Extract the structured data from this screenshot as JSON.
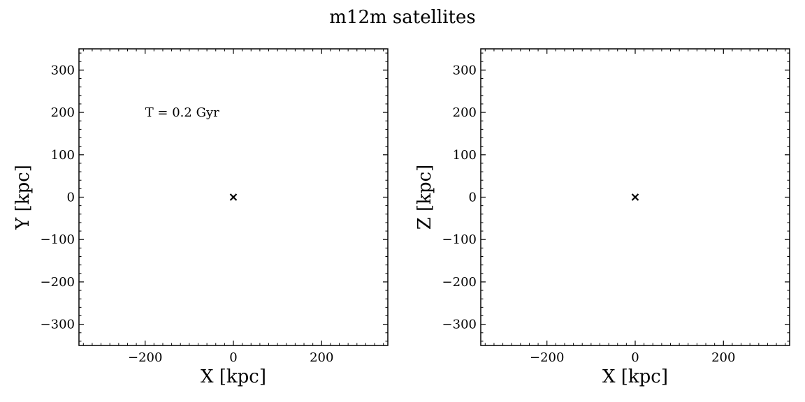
{
  "figure": {
    "title": "m12m satellites"
  },
  "chart_data": [
    {
      "type": "scatter",
      "xlabel": "X [kpc]",
      "ylabel": "Y [kpc]",
      "xlim": [
        -350,
        350
      ],
      "ylim": [
        -350,
        350
      ],
      "xticks": [
        -200,
        0,
        200
      ],
      "yticks": [
        -300,
        -200,
        -100,
        0,
        100,
        200,
        300
      ],
      "annotation": "T = 0.2 Gyr",
      "grid": false,
      "points": [
        {
          "x": 0,
          "y": 0,
          "marker": "x",
          "color": "#000000"
        }
      ]
    },
    {
      "type": "scatter",
      "xlabel": "X [kpc]",
      "ylabel": "Z [kpc]",
      "xlim": [
        -350,
        350
      ],
      "ylim": [
        -350,
        350
      ],
      "xticks": [
        -200,
        0,
        200
      ],
      "yticks": [
        -300,
        -200,
        -100,
        0,
        100,
        200,
        300
      ],
      "annotation": "",
      "grid": false,
      "points": [
        {
          "x": 0,
          "y": 0,
          "marker": "x",
          "color": "#000000"
        }
      ]
    }
  ]
}
